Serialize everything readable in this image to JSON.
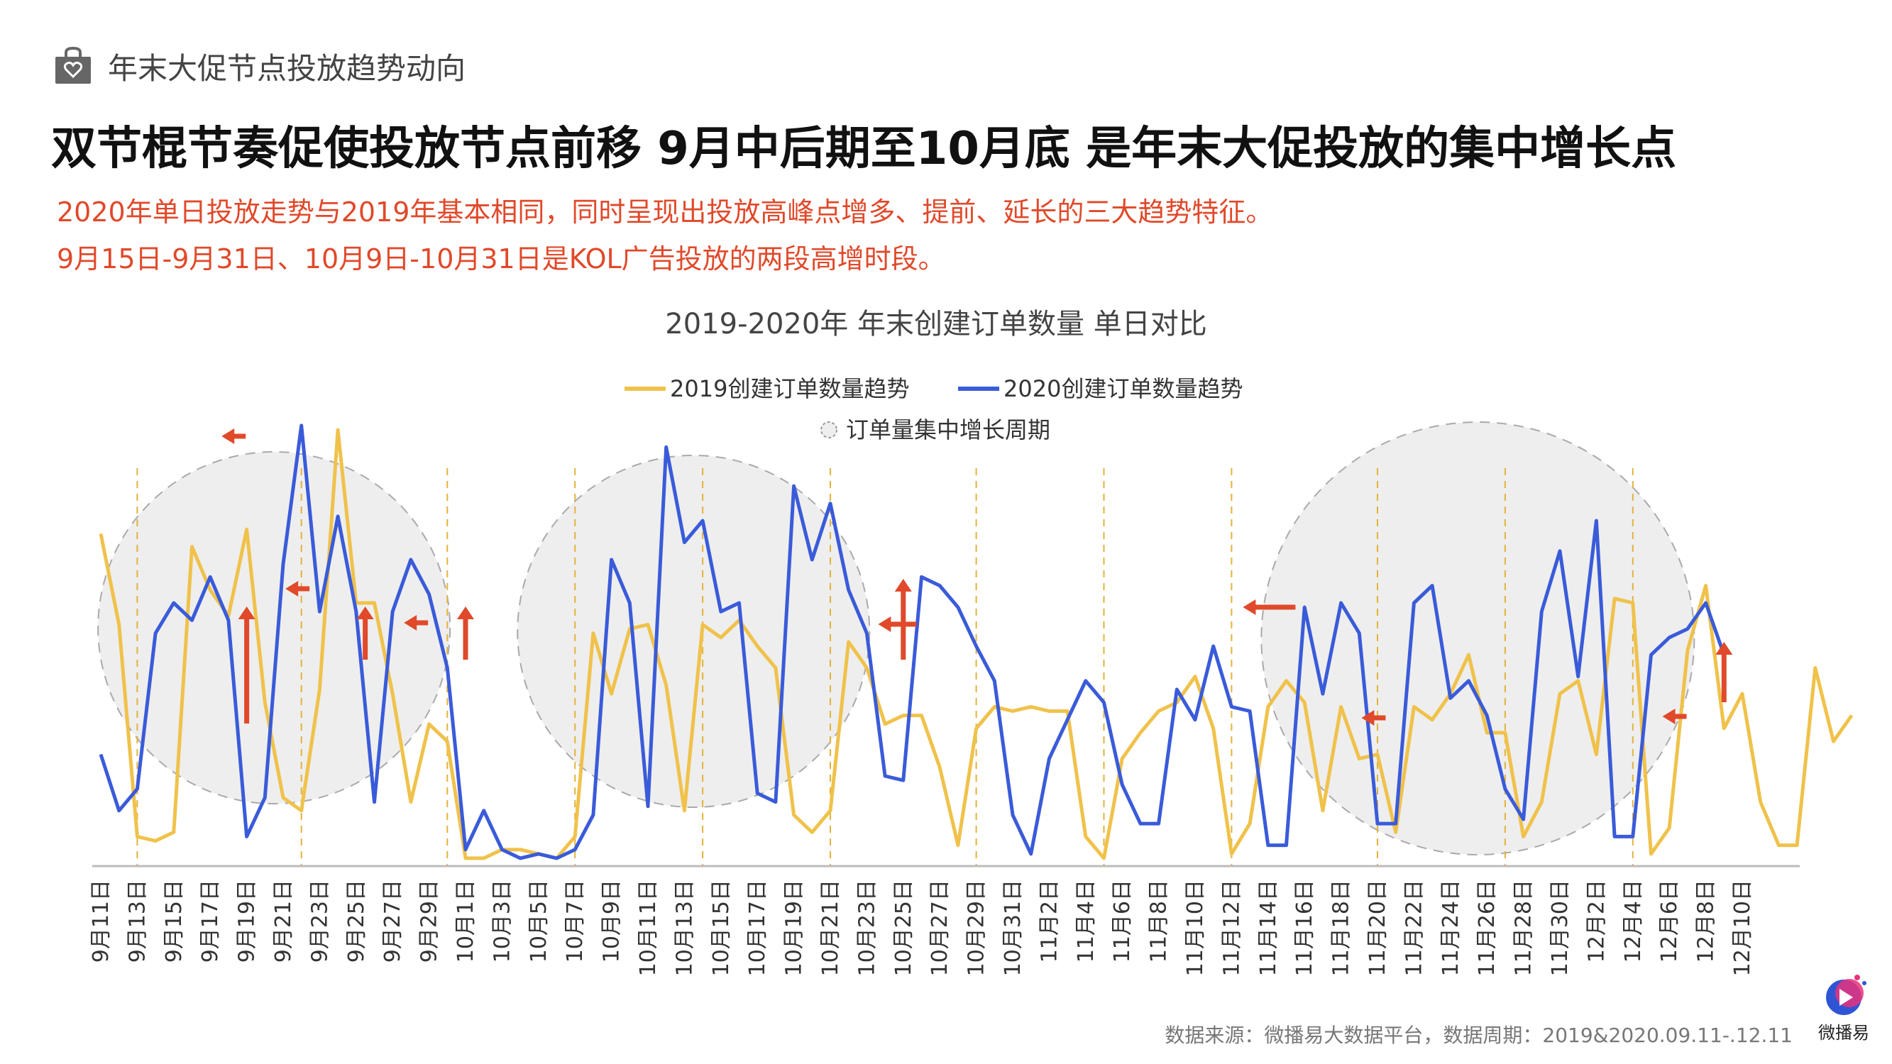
{
  "header": {
    "topic": "年末大促节点投放趋势动向",
    "headline": "双节棍节奏促使投放节点前移 9月中后期至10月底 是年末大促投放的集中增长点",
    "subtitle_line1": "2020年单日投放走势与2019年基本相同，同时呈现出投放高峰点增多、提前、延长的三大趋势特征。",
    "subtitle_line2": "9月15日-9月31日、10月9日-10月31日是KOL广告投放的两段高增时段。"
  },
  "footer": {
    "source": "数据来源：微播易大数据平台，数据周期：2019&2020.09.11-.12.11",
    "brand_name": "微播易"
  },
  "colors": {
    "series_2019": "#f0c24b",
    "series_2020": "#3a5bd9",
    "accent_red": "#e0492a",
    "headline": "#111111",
    "highlight_fill": "#eeeeee",
    "highlight_stroke": "#aaaaaa"
  },
  "icons": {
    "topic": "shopping-bag-heart-icon",
    "brand": "play-logo-icon"
  },
  "chart_data": {
    "type": "line",
    "title": "2019-2020年 年末创建订单数量 单日对比",
    "legend": {
      "items": [
        "2019创建订单数量趋势",
        "2020创建订单数量趋势",
        "订单量集中增长周期"
      ],
      "placement": "top-center"
    },
    "x_tick_labels": [
      "9月11日",
      "9月13日",
      "9月15日",
      "9月17日",
      "9月19日",
      "9月21日",
      "9月23日",
      "9月25日",
      "9月27日",
      "9月29日",
      "10月1日",
      "10月3日",
      "10月5日",
      "10月7日",
      "10月9日",
      "10月11日",
      "10月13日",
      "10月15日",
      "10月17日",
      "10月19日",
      "10月21日",
      "10月23日",
      "10月25日",
      "10月27日",
      "10月29日",
      "10月31日",
      "11月2日",
      "11月4日",
      "11月6日",
      "11月8日",
      "11月10日",
      "11月12日",
      "11月14日",
      "11月16日",
      "11月18日",
      "11月20日",
      "11月22日",
      "11月24日",
      "11月26日",
      "11月28日",
      "11月30日",
      "12月2日",
      "12月4日",
      "12月6日",
      "12月8日",
      "12月10日"
    ],
    "x_start_index": 0,
    "x_end_index": 91,
    "ylim": [
      0,
      100
    ],
    "grid": false,
    "y_axis_shown": false,
    "series": [
      {
        "name": "2019创建订单数量趋势",
        "color": "#f0c24b",
        "values": [
          76,
          55,
          6,
          5,
          7,
          73,
          63,
          57,
          77,
          37,
          15,
          12,
          40,
          100,
          60,
          60,
          39,
          14,
          32,
          28,
          1,
          1,
          3,
          3,
          2,
          1,
          6,
          53,
          39,
          54,
          55,
          41,
          12,
          55,
          52,
          56,
          50,
          45,
          11,
          7,
          12,
          51,
          45,
          32,
          34,
          34,
          22,
          4,
          31,
          36,
          35,
          36,
          35,
          35,
          6,
          1,
          24,
          30,
          35,
          37,
          43,
          31,
          2,
          9,
          36,
          42,
          37,
          12,
          36,
          24,
          25,
          7,
          36,
          33,
          39,
          48,
          30,
          30,
          6,
          14,
          39,
          42,
          25,
          61,
          60,
          2,
          8,
          49,
          64,
          31,
          39,
          14,
          4,
          4,
          45,
          28,
          34
        ]
      },
      {
        "name": "2020创建订单数量趋势",
        "color": "#3a5bd9",
        "values": [
          25,
          12,
          17,
          53,
          60,
          56,
          66,
          56,
          6,
          15,
          69,
          101,
          58,
          80,
          58,
          14,
          58,
          70,
          62,
          45,
          3,
          12,
          3,
          1,
          2,
          1,
          3,
          11,
          70,
          60,
          13,
          96,
          74,
          79,
          58,
          60,
          16,
          14,
          87,
          70,
          83,
          63,
          53,
          20,
          19,
          66,
          64,
          59,
          50,
          42,
          11,
          2,
          24,
          33,
          42,
          37,
          18,
          9,
          9,
          40,
          33,
          50,
          36,
          35,
          4,
          4,
          59,
          39,
          60,
          53,
          9,
          9,
          60,
          64,
          38,
          42,
          34,
          17,
          10,
          58,
          72,
          43,
          79,
          6,
          6,
          48,
          52,
          54,
          60,
          48
        ]
      }
    ],
    "highlight_periods": [
      {
        "center_index": 9.5
      },
      {
        "center_index": 32.5
      },
      {
        "center_index": 75.5
      }
    ],
    "dashed_marker_indices": [
      2,
      11,
      19,
      26,
      33,
      40,
      48,
      55,
      62,
      70,
      77,
      84
    ],
    "up_arrow_indices": [
      8,
      14.5,
      20,
      44,
      89
    ],
    "left_arrow_indices": [
      6,
      9.5,
      16,
      42,
      62,
      68.5,
      85
    ]
  }
}
